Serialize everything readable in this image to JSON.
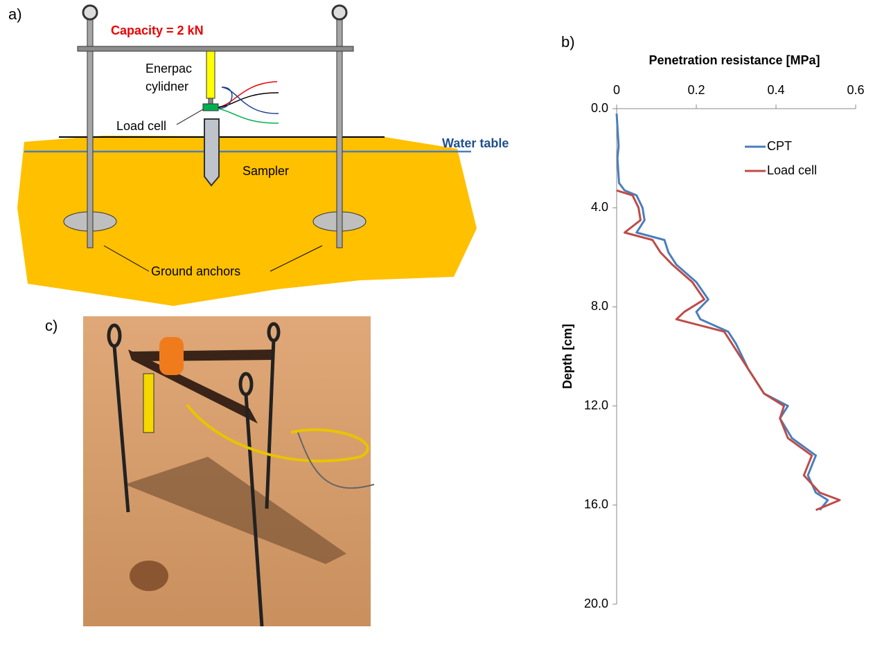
{
  "diagram": {
    "panel_label": "a)",
    "capacity": "Capacity = 2 kN",
    "cylinder_label": [
      "Enerpac",
      "cylidner"
    ],
    "load_cell": "Load cell",
    "water_table": "Water table",
    "sampler": "Sampler",
    "anchors": "Ground anchors"
  },
  "chart_data": {
    "type": "line",
    "panel_label": "b)",
    "title": "Penetration resistance [MPa]",
    "y_label": "Depth [cm]",
    "x": [
      0.2,
      1.0,
      1.5,
      2.0,
      2.5,
      3.0,
      3.3,
      3.5,
      4.0,
      4.5,
      5.0,
      5.3,
      5.8,
      6.3,
      7.0,
      7.7,
      8.2,
      8.5,
      9.0,
      9.5,
      10.5,
      11.5,
      12.0,
      12.5,
      13.3,
      14.0,
      14.8,
      15.5,
      15.8,
      16.2
    ],
    "series": [
      {
        "name": "CPT",
        "color": "#4a7ebb",
        "values": [
          0,
          0.003,
          0.005,
          0.002,
          0.004,
          0.006,
          0.02,
          0.05,
          0.065,
          0.07,
          0.05,
          0.12,
          0.13,
          0.15,
          0.2,
          0.23,
          0.2,
          0.21,
          0.28,
          0.3,
          0.33,
          0.37,
          0.43,
          0.41,
          0.44,
          0.5,
          0.48,
          0.5,
          0.53,
          0.51
        ]
      },
      {
        "name": "Load cell",
        "color": "#be4b48",
        "values": [
          null,
          null,
          null,
          null,
          null,
          null,
          0.0,
          0.04,
          0.055,
          0.06,
          0.02,
          0.09,
          0.11,
          0.14,
          0.19,
          0.22,
          0.17,
          0.15,
          0.27,
          0.29,
          0.33,
          0.37,
          0.42,
          0.41,
          0.43,
          0.49,
          0.47,
          0.51,
          0.56,
          0.5
        ]
      }
    ],
    "xlim": [
      0,
      0.6
    ],
    "xticks": [
      0,
      0.2,
      0.4,
      0.6
    ],
    "ylim": [
      0,
      20
    ],
    "yticks": [
      {
        "value": 0,
        "label": "0.0"
      },
      {
        "value": 4,
        "label": "4.0"
      },
      {
        "value": 8,
        "label": "8.0"
      },
      {
        "value": 12,
        "label": "12.0"
      },
      {
        "value": 16,
        "label": "16.0"
      },
      {
        "value": 20,
        "label": "20.0"
      }
    ],
    "y_inverted": true,
    "grid": false,
    "legend": "upper right"
  },
  "photo": {
    "panel_label": "c)"
  }
}
